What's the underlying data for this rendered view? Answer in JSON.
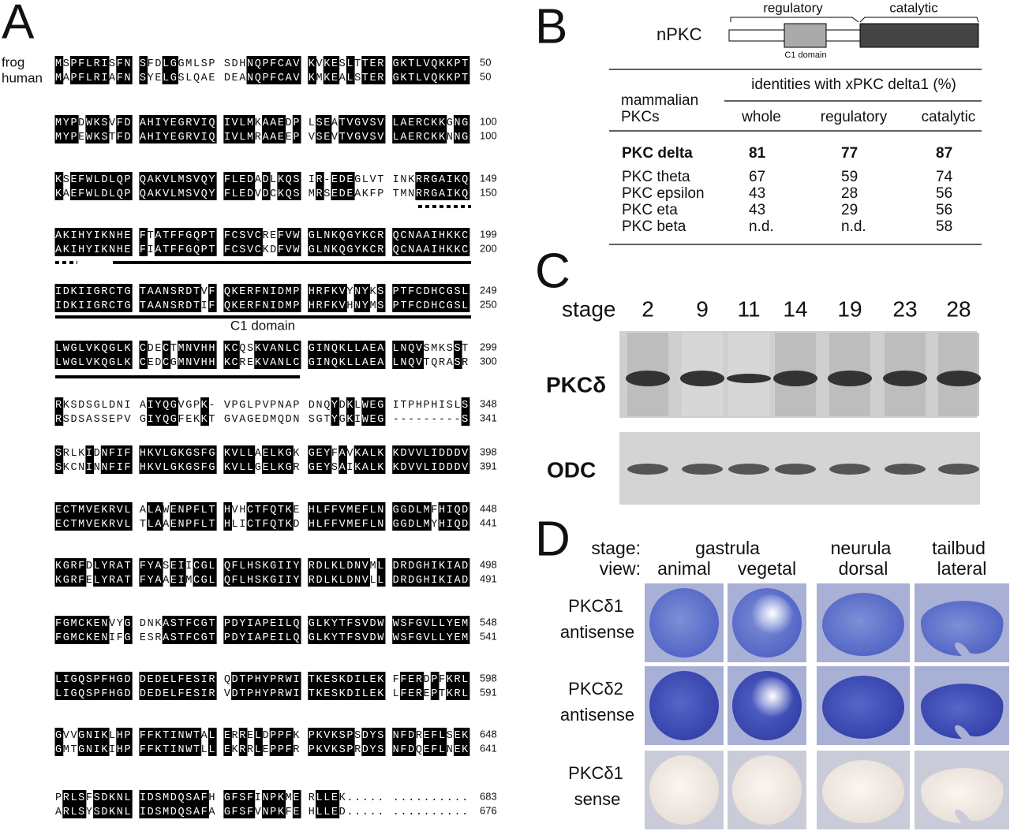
{
  "panel_a": {
    "letter": "A",
    "species": [
      "frog",
      "human"
    ],
    "domain_label": "C1 domain",
    "rows": [
      {
        "frog": "MSPFLRISFN SFDLGGMLSP SDHNQPFCAV KVKESLTTER GKTLVQKKPT",
        "frog_end": "50",
        "human": "MAPFLRIAFN SYELGSLQAE DEANQPFCAV KMKEALSTER GKTLVQKKPT",
        "human_end": "50"
      },
      {
        "frog": "MYPDWKSVFD AHIYEGRVIQ IVLMKAAEDP LSEATVGVSV LAERCKKGNG",
        "frog_end": "100",
        "human": "MYPEWKSTFD AHIYEGRVIQ IVLMRAAEEP VSEVTVGVSV LAERCKKNNG",
        "human_end": "100"
      },
      {
        "frog": "KSEFWLDLQP QAKVLMSVQY FLEDADLKQS IR-EDEGLVT INKRRGAIKQ",
        "frog_end": "149",
        "human": "KAEFWLDLQP QAKVLMSVQY FLEDVDCKQS MRSEDEAKFP TMNRRGAIKQ",
        "human_end": "150"
      },
      {
        "frog": "AKIHYIKNHE FTATFFGQPT FCSVCREFVW GLNKQGYKCR QCNAAIHKKC",
        "frog_end": "199",
        "human": "AKIHYIKNHE FIATFFGQPT FCSVCKDFVW GLNKQGYKCR QCNAAIHKKC",
        "human_end": "200"
      },
      {
        "frog": "IDKIIGRCTG TAANSRDTVF QKERFNIDMP HRFKVYNYKS PTFCDHCGSL",
        "frog_end": "249",
        "human": "IDKIIGRCTG TAANSRDTIF QKERFNIDMP HRFKVHNYMS PTFCDHCGSL",
        "human_end": "250"
      },
      {
        "frog": "LWGLVKQGLK CDECTMNVHH KCQSKVANLC GINQKLLAEA LNQVSMKSST",
        "frog_end": "299",
        "human": "LWGLVKQGLK CEDCGMNVHH KCREKVANLC GINQKLLAEA LNQVTQRASR",
        "human_end": "300"
      },
      {
        "frog": "RKSDSGLDNI AIYQGVGPK- VPGLPVPNAP DNQYDKLWEG ITPHPHISLS",
        "frog_end": "348",
        "human": "RSDSASSEPV GIYQGFEKKT GVAGEDMQDN SGTYGKIWEG ---------S",
        "human_end": "341"
      },
      {
        "frog": "SRLKIDNFIF HKVLGKGSFG KVLLAELKGK GEYFAVKALK KDVVLIDDDV",
        "frog_end": "398",
        "human": "SKCNINNFIF HKVLGKGSFG KVLLGELKGR GEYSAIKALK KDVVLIDDDV",
        "human_end": "391"
      },
      {
        "frog": "ECTMVEKRVL ALAWENPFLT HVHCTFQTKE HLFFVMEFLN GGDLMFHIQD",
        "frog_end": "448",
        "human": "ECTMVEKRVL TLAAENPFLT HLICTFQTKD HLFFVMEFLN GGDLMYHIQD",
        "human_end": "441"
      },
      {
        "frog": "KGRFDLYRAT FYASEIICGL QFLHSKGIIY RDLKLDNVML DRDGHIKIAD",
        "frog_end": "498",
        "human": "KGRFELYRAT FYAAEIMCGL QFLHSKGIIY RDLKLDNVLL DRDGHIKIAD",
        "human_end": "491"
      },
      {
        "frog": "FGMCKENVYG DNKASTFCGT PDYIAPEILQ GLKYTFSVDW WSFGVLLYEM",
        "frog_end": "548",
        "human": "FGMCKENIFG ESRASTFCGT PDYIAPEILQ GLKYTFSVDW WSFGVLLYEM",
        "human_end": "541"
      },
      {
        "frog": "LIGQSPFHGD DEDELFESIR QDTPHYPRWI TKESKDILEK FFERDPFKRL",
        "frog_end": "598",
        "human": "LIGQSPFHGD DEDELFESIR VDTPHYPRWI TKESKDILEK LFEREPTKRL",
        "human_end": "591"
      },
      {
        "frog": "GVVGNIKLHP FFKTINWTAL ERRELDPPFK PKVKSPSDYS NFDREFLSEK",
        "frog_end": "648",
        "human": "GMTGNIKIHP FFKTINWTLL EKRRLEPPFR PKVKSPRDYS NFDQEFLNEK",
        "human_end": "641"
      },
      {
        "frog": "PRLSFSDKNL IDSMDQSAFH GFSFINPKME RLLEK..... ..........",
        "frog_end": "683",
        "human": "ARLSYSDKNL IDSMDQSAFA GFSFVNPKFE HLLED..... ..........",
        "human_end": "676"
      }
    ]
  },
  "panel_b": {
    "letter": "B",
    "protein": "nPKC",
    "regulatory": "regulatory",
    "catalytic": "catalytic",
    "domain": "C1 domain",
    "row_header": [
      "mammalian",
      "PKCs"
    ],
    "column_group": "identities with xPKC delta1 (%)",
    "columns": [
      "whole",
      "regulatory",
      "catalytic"
    ],
    "rows": [
      [
        "PKC delta",
        "81",
        "77",
        "87"
      ],
      [
        "PKC theta",
        "67",
        "59",
        "74"
      ],
      [
        "PKC epsilon",
        "43",
        "28",
        "56"
      ],
      [
        "PKC eta",
        "43",
        "29",
        "56"
      ],
      [
        "PKC beta",
        "n.d.",
        "n.d.",
        "58"
      ]
    ]
  },
  "panel_c": {
    "letter": "C",
    "stage_label": "stage",
    "stages": [
      "2",
      "9",
      "11",
      "14",
      "19",
      "23",
      "28"
    ],
    "blots": [
      "PKCδ",
      "ODC"
    ]
  },
  "panel_d": {
    "letter": "D",
    "stage_label": "stage:",
    "view_label": "view:",
    "stages": [
      {
        "name": "gastrula",
        "views": [
          "animal",
          "vegetal"
        ]
      },
      {
        "name": "neurula",
        "views": [
          "dorsal"
        ]
      },
      {
        "name": "tailbud",
        "views": [
          "lateral"
        ]
      }
    ],
    "probes": [
      [
        "PKCδ1",
        "antisense"
      ],
      [
        "PKCδ2",
        "antisense"
      ],
      [
        "PKCδ1",
        "sense"
      ]
    ]
  }
}
